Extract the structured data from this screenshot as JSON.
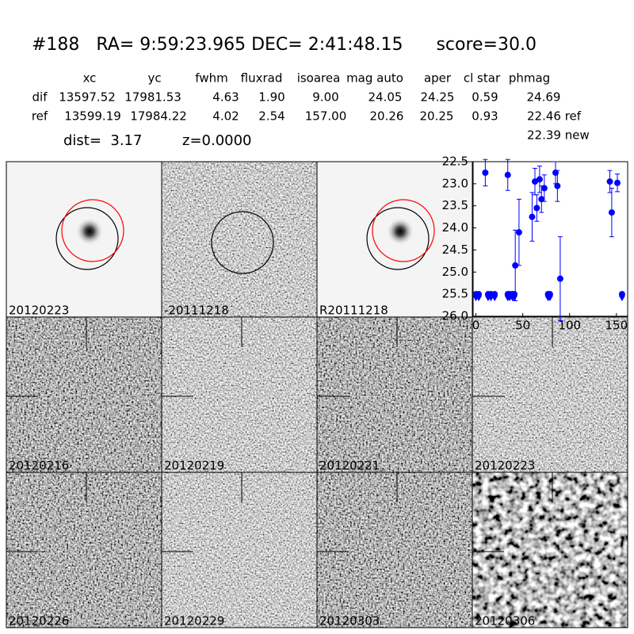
{
  "header": {
    "title": "#188   RA= 9:59:23.965 DEC= 2:41:48.15      score=30.0"
  },
  "table": {
    "columns": [
      "xc",
      "yc",
      "fwhm",
      "fluxrad",
      "isoarea",
      "mag auto",
      "aper",
      "cl star",
      "phmag"
    ],
    "rows": [
      [
        "dif",
        "13597.52",
        "17981.53",
        "4.63",
        "1.90",
        "9.00",
        "24.05",
        "24.25",
        "0.59",
        "24.69"
      ],
      [
        "ref",
        "13599.19",
        "17984.22",
        "4.02",
        "2.54",
        "157.00",
        "20.26",
        "20.25",
        "0.93",
        "22.46 ref"
      ]
    ],
    "note": "22.39 new",
    "dist": "dist=  3.17",
    "z": "z=0.0000"
  },
  "panels": [
    {
      "label": "20120223",
      "color": "#000000"
    },
    {
      "label": "-20111218",
      "color": "#000000"
    },
    {
      "label": "R20111218",
      "color": "#000000"
    },
    {
      "label": "20120216",
      "color": "#000000"
    },
    {
      "label": "20120219",
      "color": "#000000"
    },
    {
      "label": "20120221",
      "color": "#000000"
    },
    {
      "label": "20120223",
      "color": "#ff0000"
    },
    {
      "label": "20120226",
      "color": "#000000"
    },
    {
      "label": "20120229",
      "color": "#000000"
    },
    {
      "label": "20120303",
      "color": "#000000"
    },
    {
      "label": "20120306",
      "color": "#000000"
    }
  ],
  "chart_data": {
    "type": "scatter",
    "color": "#0000ff",
    "x": [
      10,
      34,
      42,
      46,
      60,
      63,
      65,
      68,
      70,
      73,
      85,
      87,
      90,
      143,
      145,
      151
    ],
    "values": [
      22.75,
      22.8,
      24.85,
      24.1,
      23.75,
      22.95,
      23.55,
      22.9,
      23.35,
      23.1,
      22.75,
      23.05,
      25.15,
      22.95,
      23.65,
      22.98
    ],
    "errors": [
      0.3,
      0.35,
      0.8,
      0.75,
      0.55,
      0.3,
      0.3,
      0.3,
      0.3,
      0.3,
      0.25,
      0.35,
      0.95,
      0.25,
      0.55,
      0.2
    ],
    "limits": {
      "x": [
        0,
        3,
        13,
        16,
        20,
        34,
        36,
        39,
        41,
        77,
        79,
        156
      ],
      "values": [
        25.5,
        25.5,
        25.5,
        25.5,
        25.5,
        25.5,
        25.5,
        25.5,
        25.5,
        25.5,
        25.5,
        25.5
      ]
    },
    "xlim": [
      -3,
      162
    ],
    "ylim": [
      26.0,
      22.5
    ],
    "xticks": [
      0,
      50,
      100,
      150
    ],
    "yticks": [
      22.5,
      {
        "value": 23,
        "label": "23.0"
      },
      23.5,
      {
        "value": 24,
        "label": "24.0"
      },
      24.5,
      {
        "value": 25,
        "label": "25.0"
      },
      25.5,
      {
        "value": 26,
        "label": "26.0"
      }
    ]
  }
}
